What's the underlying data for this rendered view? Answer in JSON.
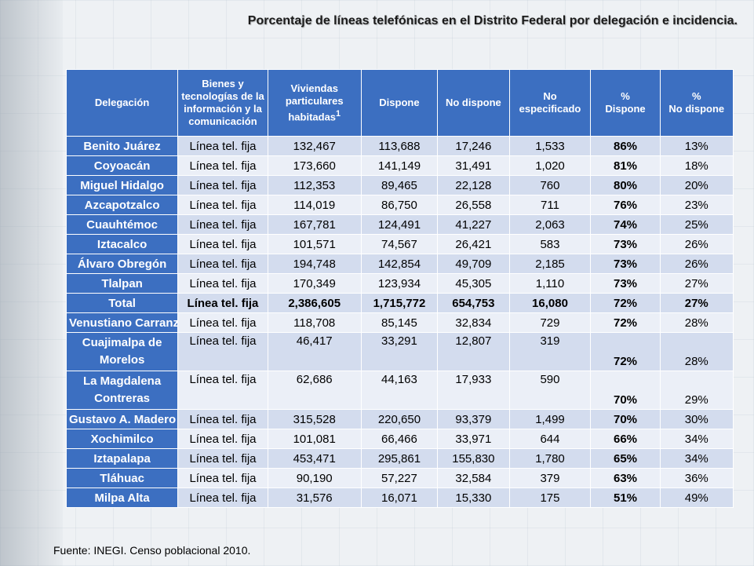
{
  "title": "Porcentaje de líneas telefónicas en el Distrito Federal por delegación e incidencia.",
  "headers": {
    "delegacion": "Delegación",
    "bienes": "Bienes y tecnologías de la información y la comunicación",
    "viviendas": "Viviendas particulares habitadas",
    "viviendas_sup": "1",
    "dispone": "Dispone",
    "no_dispone": "No dispone",
    "no_especificado": "No especificado",
    "pct_dispone_sym": "%",
    "pct_dispone": "Dispone",
    "pct_no_dispone_sym": "%",
    "pct_no_dispone": "No dispone"
  },
  "rows": [
    {
      "delegacion": "Benito Juárez",
      "bien": "Línea tel. fija",
      "viviendas": "132,467",
      "dispone": "113,688",
      "no_dispone": "17,246",
      "no_especificado": "1,533",
      "pct_dispone": "86%",
      "pct_no_dispone": "13%"
    },
    {
      "delegacion": "Coyoacán",
      "bien": "Línea tel. fija",
      "viviendas": "173,660",
      "dispone": "141,149",
      "no_dispone": "31,491",
      "no_especificado": "1,020",
      "pct_dispone": "81%",
      "pct_no_dispone": "18%"
    },
    {
      "delegacion": "Miguel Hidalgo",
      "bien": "Línea tel. fija",
      "viviendas": "112,353",
      "dispone": "89,465",
      "no_dispone": "22,128",
      "no_especificado": "760",
      "pct_dispone": "80%",
      "pct_no_dispone": "20%"
    },
    {
      "delegacion": "Azcapotzalco",
      "bien": "Línea tel. fija",
      "viviendas": "114,019",
      "dispone": "86,750",
      "no_dispone": "26,558",
      "no_especificado": "711",
      "pct_dispone": "76%",
      "pct_no_dispone": "23%"
    },
    {
      "delegacion": "Cuauhtémoc",
      "bien": "Línea tel. fija",
      "viviendas": "167,781",
      "dispone": "124,491",
      "no_dispone": "41,227",
      "no_especificado": "2,063",
      "pct_dispone": "74%",
      "pct_no_dispone": "25%"
    },
    {
      "delegacion": "Iztacalco",
      "bien": "Línea tel. fija",
      "viviendas": "101,571",
      "dispone": "74,567",
      "no_dispone": "26,421",
      "no_especificado": "583",
      "pct_dispone": "73%",
      "pct_no_dispone": "26%"
    },
    {
      "delegacion": "Álvaro Obregón",
      "bien": "Línea tel. fija",
      "viviendas": "194,748",
      "dispone": "142,854",
      "no_dispone": "49,709",
      "no_especificado": "2,185",
      "pct_dispone": "73%",
      "pct_no_dispone": "26%"
    },
    {
      "delegacion": "Tlalpan",
      "bien": "Línea tel. fija",
      "viviendas": "170,349",
      "dispone": "123,934",
      "no_dispone": "45,305",
      "no_especificado": "1,110",
      "pct_dispone": "73%",
      "pct_no_dispone": "27%"
    },
    {
      "delegacion": "Total",
      "bien": "Línea tel. fija",
      "viviendas": "2,386,605",
      "dispone": "1,715,772",
      "no_dispone": "654,753",
      "no_especificado": "16,080",
      "pct_dispone": "72%",
      "pct_no_dispone": "27%"
    },
    {
      "delegacion": "Venustiano Carranza",
      "bien": "Línea tel. fija",
      "viviendas": "118,708",
      "dispone": "85,145",
      "no_dispone": "32,834",
      "no_especificado": "729",
      "pct_dispone": "72%",
      "pct_no_dispone": "28%"
    },
    {
      "delegacion": "Cuajimalpa de Morelos",
      "bien": "Línea tel. fija",
      "viviendas": "46,417",
      "dispone": "33,291",
      "no_dispone": "12,807",
      "no_especificado": "319",
      "pct_dispone": "72%",
      "pct_no_dispone": "28%"
    },
    {
      "delegacion": "La Magdalena Contreras",
      "bien": "Línea tel. fija",
      "viviendas": "62,686",
      "dispone": "44,163",
      "no_dispone": "17,933",
      "no_especificado": "590",
      "pct_dispone": "70%",
      "pct_no_dispone": "29%"
    },
    {
      "delegacion": "Gustavo A. Madero",
      "bien": "Línea tel. fija",
      "viviendas": "315,528",
      "dispone": "220,650",
      "no_dispone": "93,379",
      "no_especificado": "1,499",
      "pct_dispone": "70%",
      "pct_no_dispone": "30%"
    },
    {
      "delegacion": "Xochimilco",
      "bien": "Línea tel. fija",
      "viviendas": "101,081",
      "dispone": "66,466",
      "no_dispone": "33,971",
      "no_especificado": "644",
      "pct_dispone": "66%",
      "pct_no_dispone": "34%"
    },
    {
      "delegacion": "Iztapalapa",
      "bien": "Línea tel. fija",
      "viviendas": "453,471",
      "dispone": "295,861",
      "no_dispone": "155,830",
      "no_especificado": "1,780",
      "pct_dispone": "65%",
      "pct_no_dispone": "34%"
    },
    {
      "delegacion": "Tláhuac",
      "bien": "Línea tel. fija",
      "viviendas": "90,190",
      "dispone": "57,227",
      "no_dispone": "32,584",
      "no_especificado": "379",
      "pct_dispone": "63%",
      "pct_no_dispone": "36%"
    },
    {
      "delegacion": "Milpa Alta",
      "bien": "Línea tel. fija",
      "viviendas": "31,576",
      "dispone": "16,071",
      "no_dispone": "15,330",
      "no_especificado": "175",
      "pct_dispone": "51%",
      "pct_no_dispone": "49%"
    }
  ],
  "source": "Fuente: INEGI. Censo poblacional 2010."
}
